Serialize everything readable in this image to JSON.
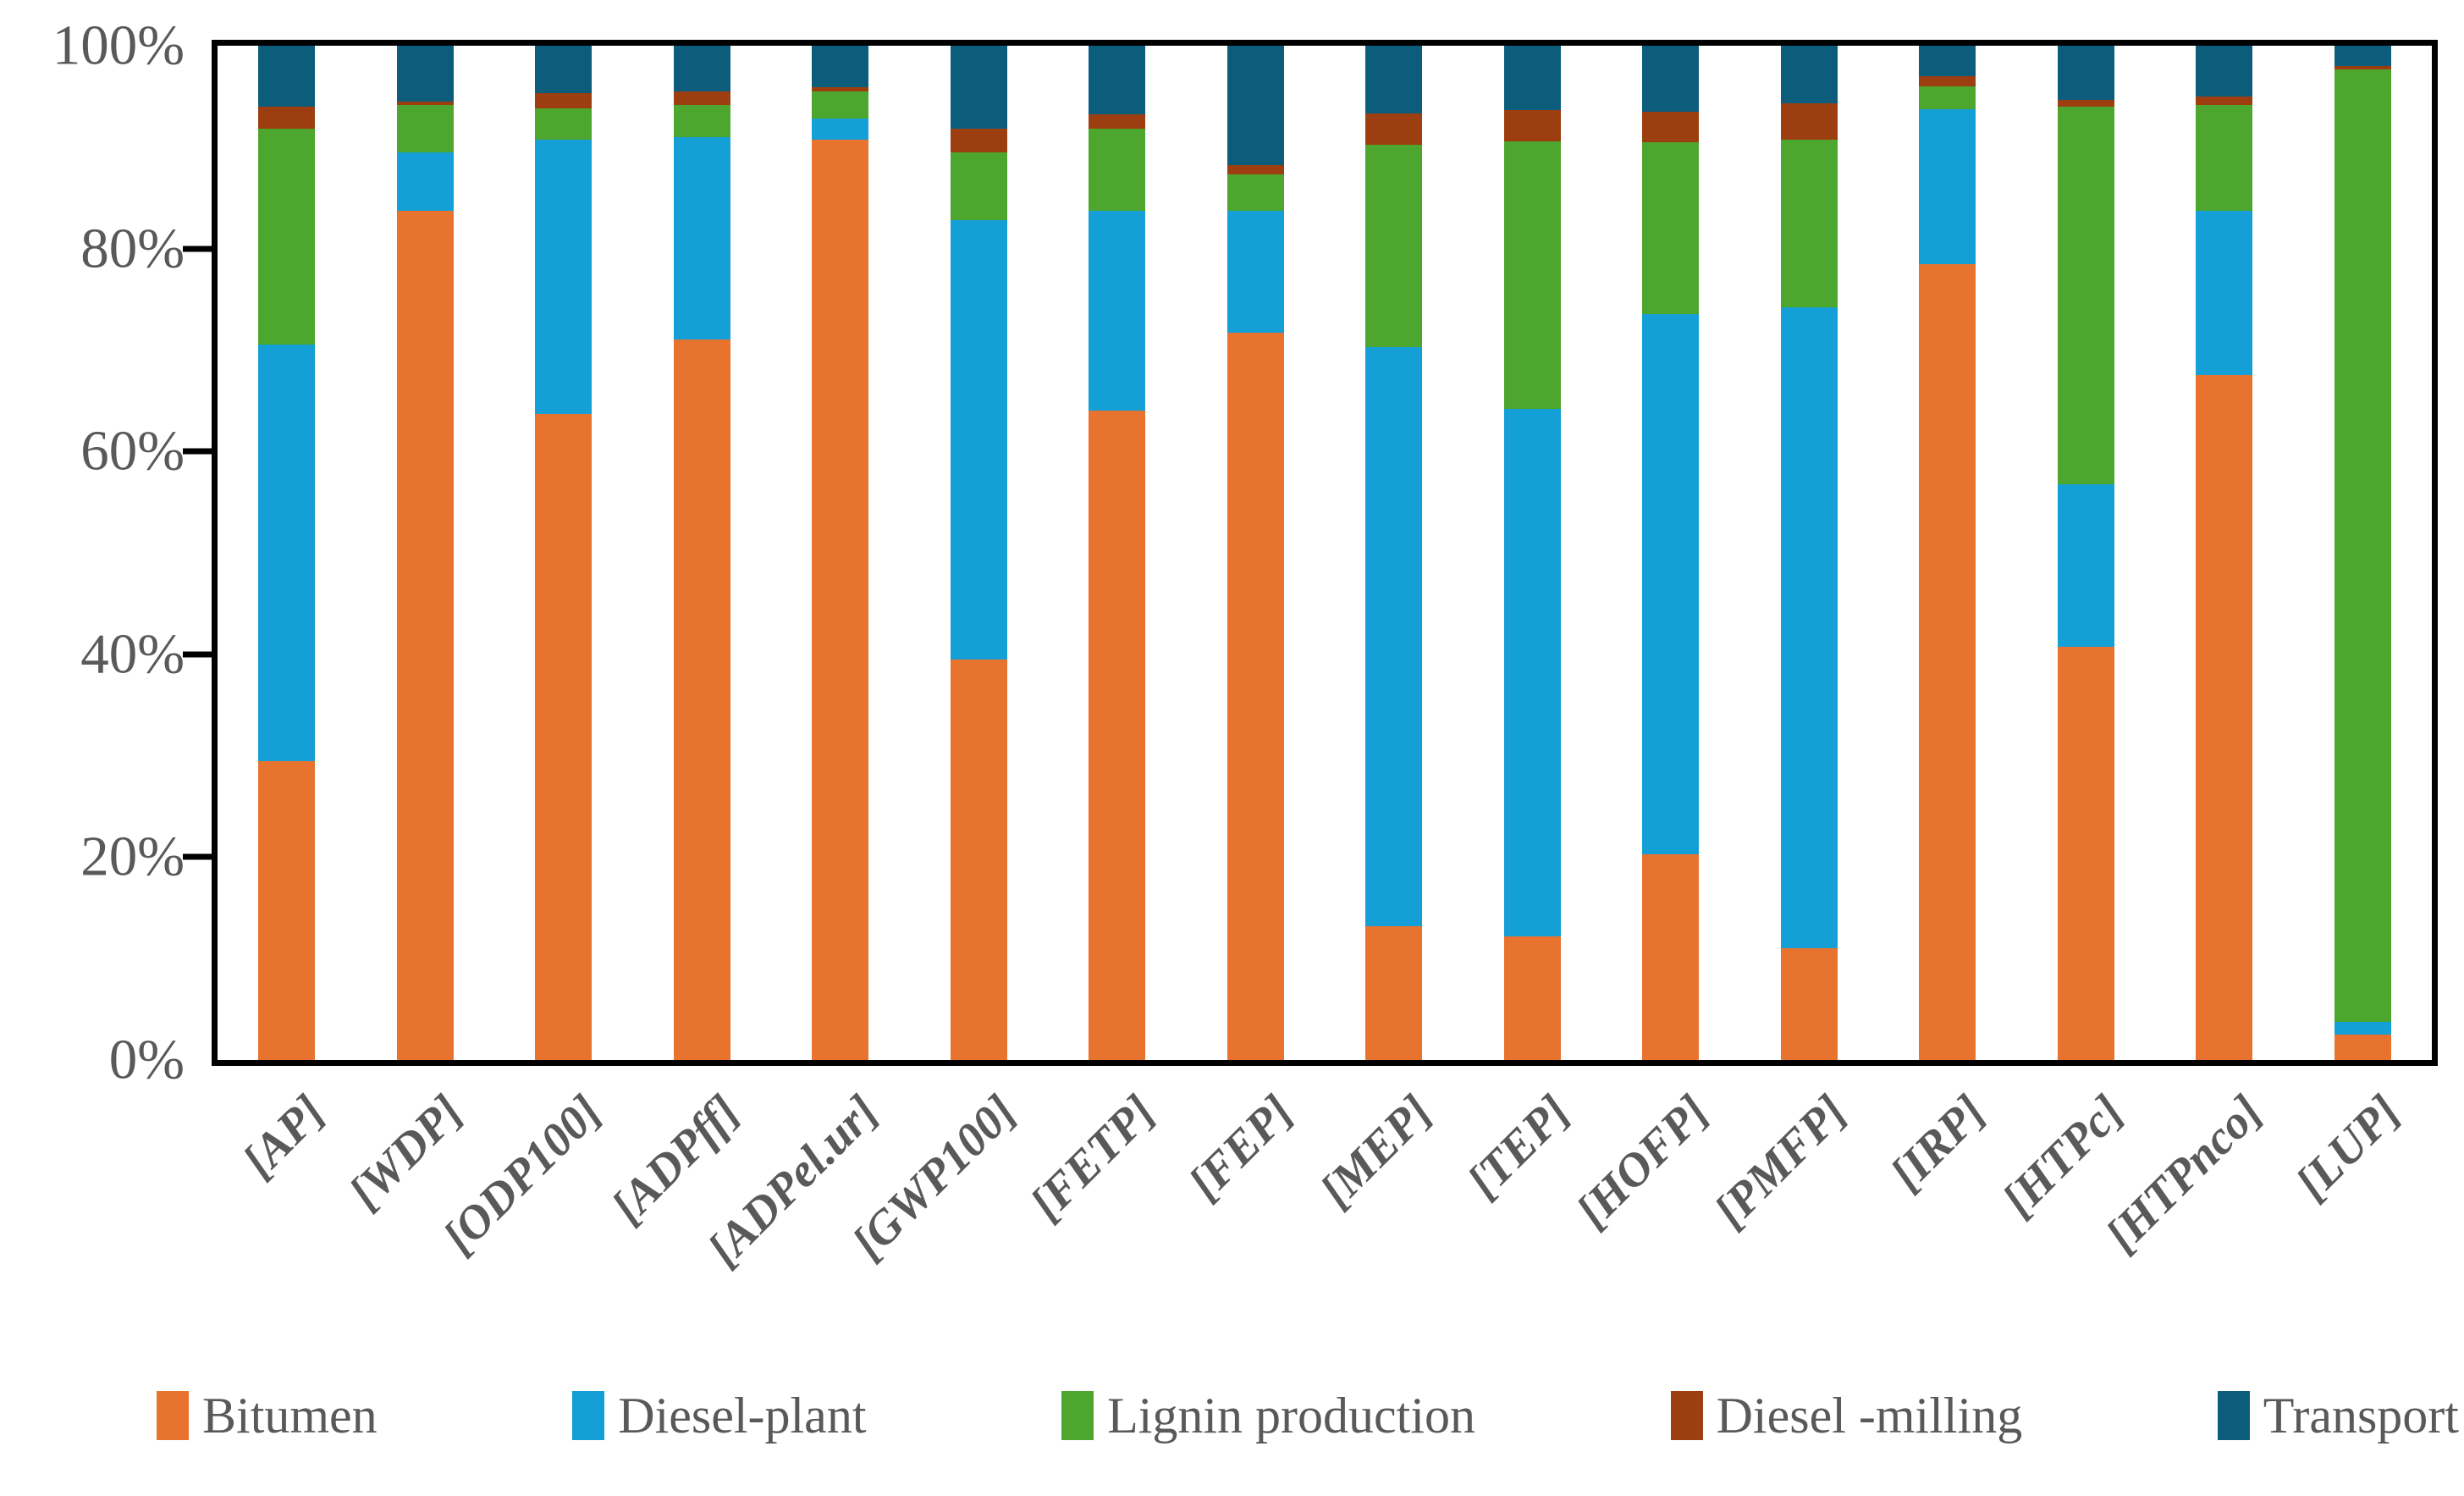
{
  "colors": {
    "bitumen": "#E8732F",
    "diesel_plant": "#149FD6",
    "lignin_production": "#4DA62E",
    "diesel_milling": "#9C3E10",
    "transport": "#0C5D7C",
    "axis_line": "#000000",
    "text": "#595959"
  },
  "y_axis": {
    "ticks": [
      {
        "value": 0,
        "label": "0%"
      },
      {
        "value": 20,
        "label": "20%"
      },
      {
        "value": 40,
        "label": "40%"
      },
      {
        "value": 60,
        "label": "60%"
      },
      {
        "value": 80,
        "label": "80%"
      },
      {
        "value": 100,
        "label": "100%"
      }
    ]
  },
  "legend": {
    "items": [
      "Bitumen",
      "Diesel-plant",
      "Lignin production",
      "Diesel -milling",
      "Transport"
    ]
  },
  "chart_data": {
    "type": "bar",
    "subtype": "stacked-100",
    "title": "",
    "xlabel": "",
    "ylabel": "",
    "ylim": [
      0,
      100
    ],
    "grid": false,
    "legend_position": "bottom",
    "categories": [
      "[AP]",
      "[WDP]",
      "[ODP100]",
      "[ADPff]",
      "[ADPel.ur]",
      "[GWP100]",
      "[FETP]",
      "[FEP]",
      "[MEP]",
      "[TEP]",
      "[HOFP]",
      "[PMFP]",
      "[IRP]",
      "[HTPc]",
      "[HTPnco]",
      "[LUP]"
    ],
    "series": [
      {
        "name": "Bitumen",
        "color_key": "bitumen",
        "values": [
          29.5,
          83.7,
          63.7,
          71.0,
          90.7,
          39.5,
          64.0,
          71.7,
          13.2,
          12.2,
          20.3,
          11.0,
          78.5,
          40.7,
          67.5,
          2.5
        ]
      },
      {
        "name": "Diesel-plant",
        "color_key": "diesel_plant",
        "values": [
          41.0,
          5.8,
          27.0,
          20.0,
          2.1,
          43.3,
          19.7,
          12.0,
          57.1,
          52.0,
          53.2,
          63.2,
          15.2,
          16.1,
          16.2,
          1.3
        ]
      },
      {
        "name": "Lignin production",
        "color_key": "lignin_production",
        "values": [
          21.3,
          4.7,
          3.1,
          3.2,
          2.7,
          6.7,
          8.1,
          3.6,
          19.9,
          26.4,
          17.0,
          16.5,
          2.3,
          37.2,
          10.5,
          93.9
        ]
      },
      {
        "name": "Diesel -milling",
        "color_key": "diesel_milling",
        "values": [
          2.2,
          0.3,
          1.5,
          1.3,
          0.4,
          2.3,
          1.4,
          0.9,
          3.1,
          3.1,
          3.0,
          3.6,
          1.0,
          0.7,
          0.8,
          0.3
        ]
      },
      {
        "name": "Transport",
        "color_key": "transport",
        "values": [
          6.0,
          5.5,
          4.7,
          4.5,
          4.1,
          8.2,
          6.8,
          11.8,
          6.7,
          6.3,
          6.5,
          5.7,
          3.0,
          5.3,
          5.0,
          2.0
        ]
      }
    ]
  }
}
